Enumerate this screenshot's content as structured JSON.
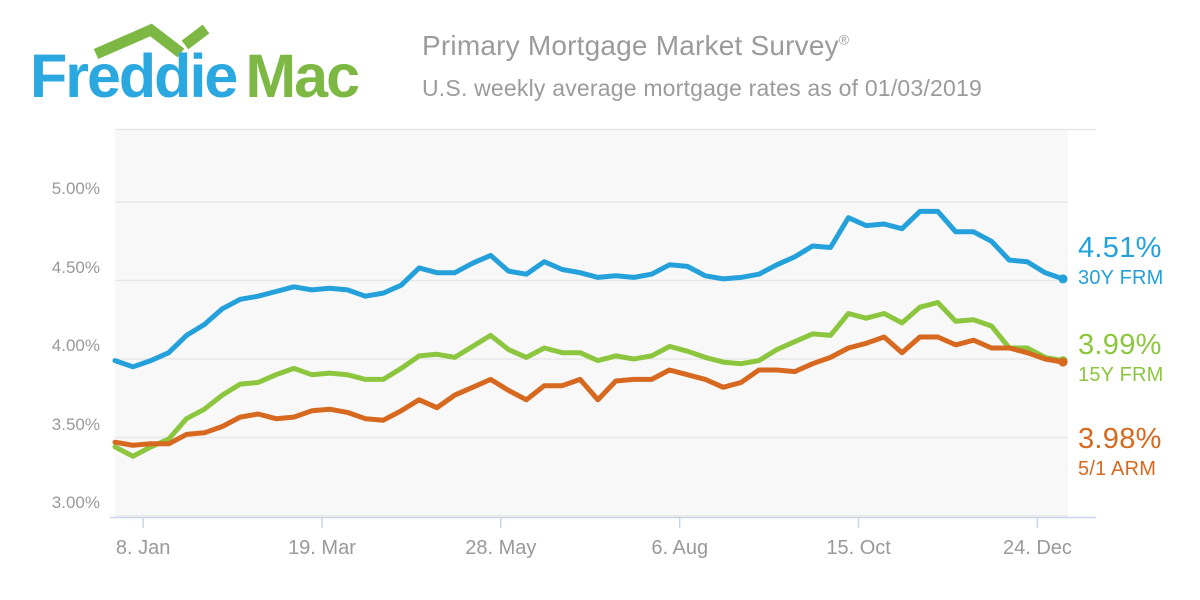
{
  "header": {
    "logo": {
      "word1": "Freddie",
      "word2": "Mac"
    },
    "title": "Primary Mortgage Market Survey",
    "registered_mark": "®",
    "subtitle": "U.S. weekly average mortgage rates as of 01/03/2019"
  },
  "colors": {
    "logo_blue": "#2BA8E0",
    "logo_green": "#7CB843",
    "plot_background": "#F8F8F8",
    "gridline": "#E7E7E7",
    "plot_top_border": "#E7E7E7",
    "axis_line": "#CCD6EB",
    "axis_text": "#999999",
    "title_text": "#9B9B9B"
  },
  "chart_data": {
    "type": "line",
    "title": "",
    "x_unit": "survey week ending date",
    "dates": [
      "2017-12-28",
      "2018-01-04",
      "2018-01-11",
      "2018-01-18",
      "2018-01-25",
      "2018-02-01",
      "2018-02-08",
      "2018-02-15",
      "2018-02-22",
      "2018-03-01",
      "2018-03-08",
      "2018-03-15",
      "2018-03-22",
      "2018-03-29",
      "2018-04-05",
      "2018-04-12",
      "2018-04-19",
      "2018-04-26",
      "2018-05-03",
      "2018-05-10",
      "2018-05-17",
      "2018-05-24",
      "2018-05-31",
      "2018-06-07",
      "2018-06-14",
      "2018-06-21",
      "2018-06-28",
      "2018-07-05",
      "2018-07-12",
      "2018-07-19",
      "2018-07-26",
      "2018-08-02",
      "2018-08-09",
      "2018-08-16",
      "2018-08-23",
      "2018-08-30",
      "2018-09-06",
      "2018-09-13",
      "2018-09-20",
      "2018-09-27",
      "2018-10-04",
      "2018-10-11",
      "2018-10-18",
      "2018-10-25",
      "2018-11-01",
      "2018-11-08",
      "2018-11-15",
      "2018-11-21",
      "2018-11-29",
      "2018-12-06",
      "2018-12-13",
      "2018-12-20",
      "2018-12-27",
      "2019-01-03"
    ],
    "series": [
      {
        "name": "30Y FRM",
        "latest_value": "4.51%",
        "color": "#24A0DB",
        "values": [
          3.99,
          3.95,
          3.99,
          4.04,
          4.15,
          4.22,
          4.32,
          4.38,
          4.4,
          4.43,
          4.46,
          4.44,
          4.45,
          4.44,
          4.4,
          4.42,
          4.47,
          4.58,
          4.55,
          4.55,
          4.61,
          4.66,
          4.56,
          4.54,
          4.62,
          4.57,
          4.55,
          4.52,
          4.53,
          4.52,
          4.54,
          4.6,
          4.59,
          4.53,
          4.51,
          4.52,
          4.54,
          4.6,
          4.65,
          4.72,
          4.71,
          4.9,
          4.85,
          4.86,
          4.83,
          4.94,
          4.94,
          4.81,
          4.81,
          4.75,
          4.63,
          4.62,
          4.55,
          4.51
        ]
      },
      {
        "name": "15Y FRM",
        "latest_value": "3.99%",
        "color": "#8CC63F",
        "values": [
          3.44,
          3.38,
          3.44,
          3.49,
          3.62,
          3.68,
          3.77,
          3.84,
          3.85,
          3.9,
          3.94,
          3.9,
          3.91,
          3.9,
          3.87,
          3.87,
          3.94,
          4.02,
          4.03,
          4.01,
          4.08,
          4.15,
          4.06,
          4.01,
          4.07,
          4.04,
          4.04,
          3.99,
          4.02,
          4.0,
          4.02,
          4.08,
          4.05,
          4.01,
          3.98,
          3.97,
          3.99,
          4.06,
          4.11,
          4.16,
          4.15,
          4.29,
          4.26,
          4.29,
          4.23,
          4.33,
          4.36,
          4.24,
          4.25,
          4.21,
          4.07,
          4.07,
          4.01,
          3.99
        ]
      },
      {
        "name": "5/1 ARM",
        "latest_value": "3.98%",
        "color": "#D6691F",
        "values": [
          3.47,
          3.45,
          3.46,
          3.46,
          3.52,
          3.53,
          3.57,
          3.63,
          3.65,
          3.62,
          3.63,
          3.67,
          3.68,
          3.66,
          3.62,
          3.61,
          3.67,
          3.74,
          3.69,
          3.77,
          3.82,
          3.87,
          3.8,
          3.74,
          3.83,
          3.83,
          3.87,
          3.74,
          3.86,
          3.87,
          3.87,
          3.93,
          3.9,
          3.87,
          3.82,
          3.85,
          3.93,
          3.93,
          3.92,
          3.97,
          4.01,
          4.07,
          4.1,
          4.14,
          4.04,
          4.14,
          4.14,
          4.09,
          4.12,
          4.07,
          4.07,
          4.04,
          4.0,
          3.98
        ]
      }
    ],
    "y_axis": {
      "tick_labels": [
        "5.00%",
        "4.50%",
        "4.00%",
        "3.50%",
        "3.00%"
      ],
      "tick_values": [
        5.0,
        4.5,
        4.0,
        3.5,
        3.0
      ],
      "min": 3.0,
      "grid": true
    },
    "x_axis": {
      "ticks": [
        {
          "label": "8. Jan",
          "day_offset": 11
        },
        {
          "label": "19. Mar",
          "day_offset": 81
        },
        {
          "label": "28. May",
          "day_offset": 151
        },
        {
          "label": "6. Aug",
          "day_offset": 221
        },
        {
          "label": "15. Oct",
          "day_offset": 291
        },
        {
          "label": "24. Dec",
          "day_offset": 361
        }
      ],
      "span_days": 371
    },
    "legend_position": "right-of-plot"
  }
}
